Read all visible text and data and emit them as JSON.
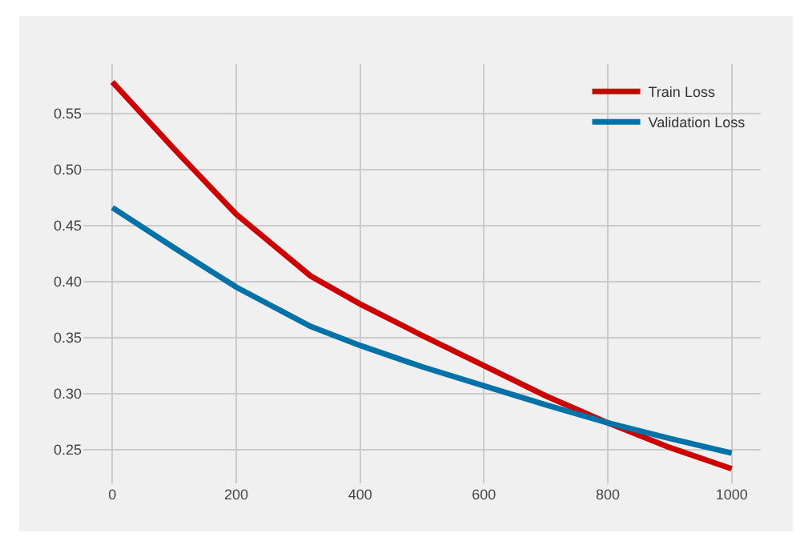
{
  "chart_data": {
    "type": "line",
    "x": [
      0,
      100,
      200,
      320,
      400,
      500,
      600,
      700,
      800,
      900,
      1000
    ],
    "series": [
      {
        "name": "Train Loss",
        "color": "#cc0000",
        "values": [
          0.578,
          0.518,
          0.46,
          0.405,
          0.38,
          0.352,
          0.325,
          0.298,
          0.274,
          0.252,
          0.233
        ]
      },
      {
        "name": "Validation Loss",
        "color": "#0072a8",
        "values": [
          0.466,
          0.43,
          0.395,
          0.36,
          0.343,
          0.324,
          0.307,
          0.29,
          0.274,
          0.26,
          0.247
        ]
      }
    ],
    "xlim": [
      -47,
      1047
    ],
    "xticks": [
      0,
      200,
      400,
      600,
      800,
      1000
    ],
    "ylim": [
      0.22,
      0.594
    ],
    "yticks": [
      {
        "value": 0.25,
        "label": "0.25"
      },
      {
        "value": 0.3,
        "label": "0.30"
      },
      {
        "value": 0.35,
        "label": "0.35"
      },
      {
        "value": 0.4,
        "label": "0.40"
      },
      {
        "value": 0.45,
        "label": "0.45"
      },
      {
        "value": 0.5,
        "label": "0.50"
      },
      {
        "value": 0.55,
        "label": "0.55"
      }
    ],
    "grid": true,
    "legend": "top right",
    "line_style": "solid",
    "marker": "none"
  }
}
